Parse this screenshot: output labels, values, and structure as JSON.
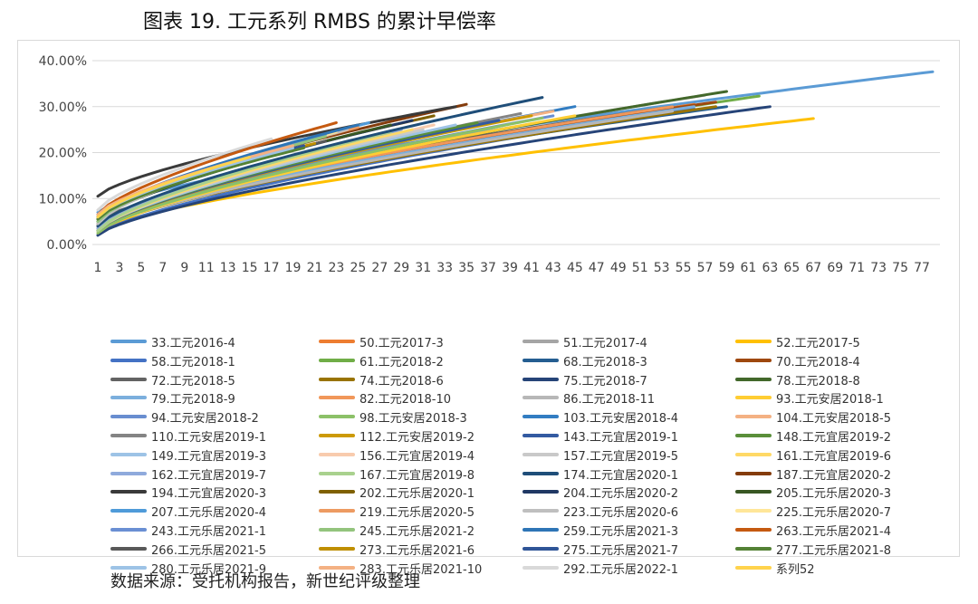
{
  "figure": {
    "title": "图表 19.    工元系列 RMBS 的累计早偿率",
    "source": "数据来源：受托机构报告，新世纪评级整理"
  },
  "chart_data": {
    "type": "line",
    "title": "",
    "xlabel": "",
    "ylabel": "",
    "ylim": [
      0,
      0.4
    ],
    "xlim": [
      1,
      78
    ],
    "yticks": [
      "0.00%",
      "10.00%",
      "20.00%",
      "30.00%",
      "40.00%"
    ],
    "xticks": [
      1,
      3,
      5,
      7,
      9,
      11,
      13,
      15,
      17,
      19,
      21,
      23,
      25,
      27,
      29,
      31,
      33,
      35,
      37,
      39,
      41,
      43,
      45,
      47,
      49,
      51,
      53,
      55,
      57,
      59,
      61,
      63,
      65,
      67,
      69,
      71,
      73,
      75,
      77
    ],
    "grid": "horizontal",
    "legend_position": "bottom",
    "series": [
      {
        "name": "33.工元2016-4",
        "color": "#5B9BD5",
        "months": 78,
        "start": 0.07,
        "end": 0.376
      },
      {
        "name": "50.工元2017-3",
        "color": "#ED7D31",
        "months": 56,
        "start": 0.04,
        "end": 0.305
      },
      {
        "name": "51.工元2017-4",
        "color": "#A5A5A5",
        "months": 57,
        "start": 0.035,
        "end": 0.325
      },
      {
        "name": "52.工元2017-5",
        "color": "#FFC000",
        "months": 67,
        "start": 0.03,
        "end": 0.274
      },
      {
        "name": "58.工元2018-1",
        "color": "#4472C4",
        "months": 56,
        "start": 0.02,
        "end": 0.295
      },
      {
        "name": "61.工元2018-2",
        "color": "#70AD47",
        "months": 62,
        "start": 0.03,
        "end": 0.323
      },
      {
        "name": "68.工元2018-3",
        "color": "#255E91",
        "months": 59,
        "start": 0.04,
        "end": 0.3
      },
      {
        "name": "70.工元2018-4",
        "color": "#9E480E",
        "months": 58,
        "start": 0.045,
        "end": 0.31
      },
      {
        "name": "72.工元2018-5",
        "color": "#636363",
        "months": 54,
        "start": 0.05,
        "end": 0.3
      },
      {
        "name": "74.工元2018-6",
        "color": "#997300",
        "months": 58,
        "start": 0.03,
        "end": 0.3
      },
      {
        "name": "75.工元2018-7",
        "color": "#264478",
        "months": 63,
        "start": 0.02,
        "end": 0.3
      },
      {
        "name": "78.工元2018-8",
        "color": "#43682B",
        "months": 59,
        "start": 0.03,
        "end": 0.333
      },
      {
        "name": "79.工元2018-9",
        "color": "#7CAFDD",
        "months": 56,
        "start": 0.035,
        "end": 0.3
      },
      {
        "name": "82.工元2018-10",
        "color": "#F1975A",
        "months": 54,
        "start": 0.04,
        "end": 0.3
      },
      {
        "name": "86.工元2018-11",
        "color": "#B7B7B7",
        "months": 54,
        "start": 0.03,
        "end": 0.29
      },
      {
        "name": "93.工元安居2018-1",
        "color": "#FFCD33",
        "months": 45,
        "start": 0.025,
        "end": 0.28
      },
      {
        "name": "94.工元安居2018-2",
        "color": "#698ED0",
        "months": 43,
        "start": 0.03,
        "end": 0.28
      },
      {
        "name": "98.工元安居2018-3",
        "color": "#8CC168",
        "months": 42,
        "start": 0.025,
        "end": 0.275
      },
      {
        "name": "103.工元安居2018-4",
        "color": "#327DC2",
        "months": 45,
        "start": 0.03,
        "end": 0.3
      },
      {
        "name": "104.工元安居2018-5",
        "color": "#F4B183",
        "months": 43,
        "start": 0.03,
        "end": 0.29
      },
      {
        "name": "110.工元安居2019-1",
        "color": "#848484",
        "months": 40,
        "start": 0.03,
        "end": 0.285
      },
      {
        "name": "112.工元安居2019-2",
        "color": "#CC9A06",
        "months": 41,
        "start": 0.03,
        "end": 0.28
      },
      {
        "name": "143.工元宜居2019-1",
        "color": "#335AA1",
        "months": 38,
        "start": 0.03,
        "end": 0.27
      },
      {
        "name": "148.工元宜居2019-2",
        "color": "#5A8F3A",
        "months": 36,
        "start": 0.03,
        "end": 0.265
      },
      {
        "name": "149.工元宜居2019-3",
        "color": "#9DC3E6",
        "months": 34,
        "start": 0.03,
        "end": 0.26
      },
      {
        "name": "156.工元宜居2019-4",
        "color": "#F8CBAD",
        "months": 32,
        "start": 0.035,
        "end": 0.26
      },
      {
        "name": "157.工元宜居2019-5",
        "color": "#C9C9C9",
        "months": 31,
        "start": 0.03,
        "end": 0.25
      },
      {
        "name": "161.工元宜居2019-6",
        "color": "#FFD966",
        "months": 30,
        "start": 0.03,
        "end": 0.25
      },
      {
        "name": "162.工元宜居2019-7",
        "color": "#8FAADC",
        "months": 29,
        "start": 0.035,
        "end": 0.25
      },
      {
        "name": "167.工元宜居2019-8",
        "color": "#A9D18E",
        "months": 28,
        "start": 0.03,
        "end": 0.245
      },
      {
        "name": "174.工元宜居2020-1",
        "color": "#1F4E79",
        "months": 42,
        "start": 0.04,
        "end": 0.32
      },
      {
        "name": "187.工元宜居2020-2",
        "color": "#843C0C",
        "months": 35,
        "start": 0.06,
        "end": 0.305
      },
      {
        "name": "194.工元宜居2020-3",
        "color": "#3A3A3A",
        "months": 34,
        "start": 0.105,
        "end": 0.3
      },
      {
        "name": "202.工元乐居2020-1",
        "color": "#7F6000",
        "months": 32,
        "start": 0.055,
        "end": 0.28
      },
      {
        "name": "204.工元乐居2020-2",
        "color": "#203864",
        "months": 30,
        "start": 0.05,
        "end": 0.27
      },
      {
        "name": "205.工元乐居2020-3",
        "color": "#385723",
        "months": 28,
        "start": 0.05,
        "end": 0.26
      },
      {
        "name": "207.工元乐居2020-4",
        "color": "#4F9BD9",
        "months": 26,
        "start": 0.05,
        "end": 0.265
      },
      {
        "name": "219.工元乐居2020-5",
        "color": "#ED9B62",
        "months": 25,
        "start": 0.05,
        "end": 0.255
      },
      {
        "name": "223.工元乐居2020-6",
        "color": "#BFBFBF",
        "months": 24,
        "start": 0.045,
        "end": 0.25
      },
      {
        "name": "225.工元乐居2020-7",
        "color": "#FFE699",
        "months": 23,
        "start": 0.05,
        "end": 0.245
      },
      {
        "name": "243.工元乐居2021-1",
        "color": "#6A8FD3",
        "months": 22,
        "start": 0.05,
        "end": 0.24
      },
      {
        "name": "245.工元乐居2021-2",
        "color": "#93C47D",
        "months": 22,
        "start": 0.05,
        "end": 0.235
      },
      {
        "name": "259.工元乐居2021-3",
        "color": "#2E75B6",
        "months": 25,
        "start": 0.06,
        "end": 0.26
      },
      {
        "name": "263.工元乐居2021-4",
        "color": "#C55A11",
        "months": 23,
        "start": 0.065,
        "end": 0.265
      },
      {
        "name": "266.工元乐居2021-5",
        "color": "#595959",
        "months": 22,
        "start": 0.06,
        "end": 0.225
      },
      {
        "name": "273.工元乐居2021-6",
        "color": "#BF8F00",
        "months": 21,
        "start": 0.06,
        "end": 0.22
      },
      {
        "name": "275.工元乐居2021-7",
        "color": "#2F5597",
        "months": 20,
        "start": 0.06,
        "end": 0.215
      },
      {
        "name": "277.工元乐居2021-8",
        "color": "#548235",
        "months": 20,
        "start": 0.055,
        "end": 0.21
      },
      {
        "name": "280.工元乐居2021-9",
        "color": "#9DC3E6",
        "months": 19,
        "start": 0.06,
        "end": 0.21
      },
      {
        "name": "283.工元乐居2021-10",
        "color": "#F4B183",
        "months": 19,
        "start": 0.065,
        "end": 0.215
      },
      {
        "name": "292.工元乐居2022-1",
        "color": "#D9D9D9",
        "months": 17,
        "start": 0.075,
        "end": 0.23
      },
      {
        "name": "系列52",
        "color": "#FFD34D",
        "months": 15,
        "start": 0.06,
        "end": 0.19
      }
    ]
  }
}
